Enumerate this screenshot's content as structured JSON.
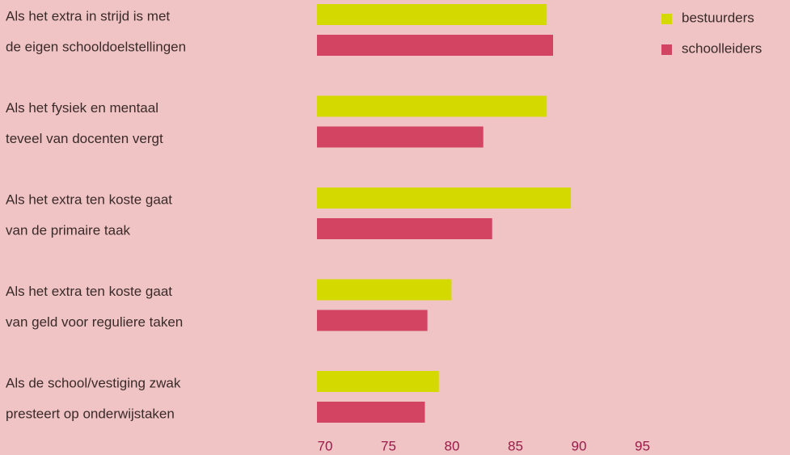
{
  "chart_data": {
    "type": "hbar",
    "categories": [
      [
        "Als het extra in strijd is met",
        "de eigen schooldoelstellingen"
      ],
      [
        "Als het fysiek en mentaal",
        "teveel van docenten vergt"
      ],
      [
        "Als het extra ten koste gaat",
        "van de primaire taak"
      ],
      [
        "Als het extra ten koste gaat",
        "van geld voor reguliere taken"
      ],
      [
        "Als de school/vestiging zwak",
        "presteert op onderwijstaken"
      ]
    ],
    "series": [
      {
        "name": "bestuurders",
        "color": "#d4d900",
        "values": [
          88.1,
          88.1,
          90,
          80.6,
          79.6
        ]
      },
      {
        "name": "schoolleiders",
        "color": "#d24461",
        "values": [
          88.6,
          83.1,
          83.8,
          78.7,
          78.5
        ]
      }
    ],
    "xlim": [
      70,
      95
    ],
    "xticks": [
      70,
      75,
      80,
      85,
      90,
      95
    ]
  }
}
